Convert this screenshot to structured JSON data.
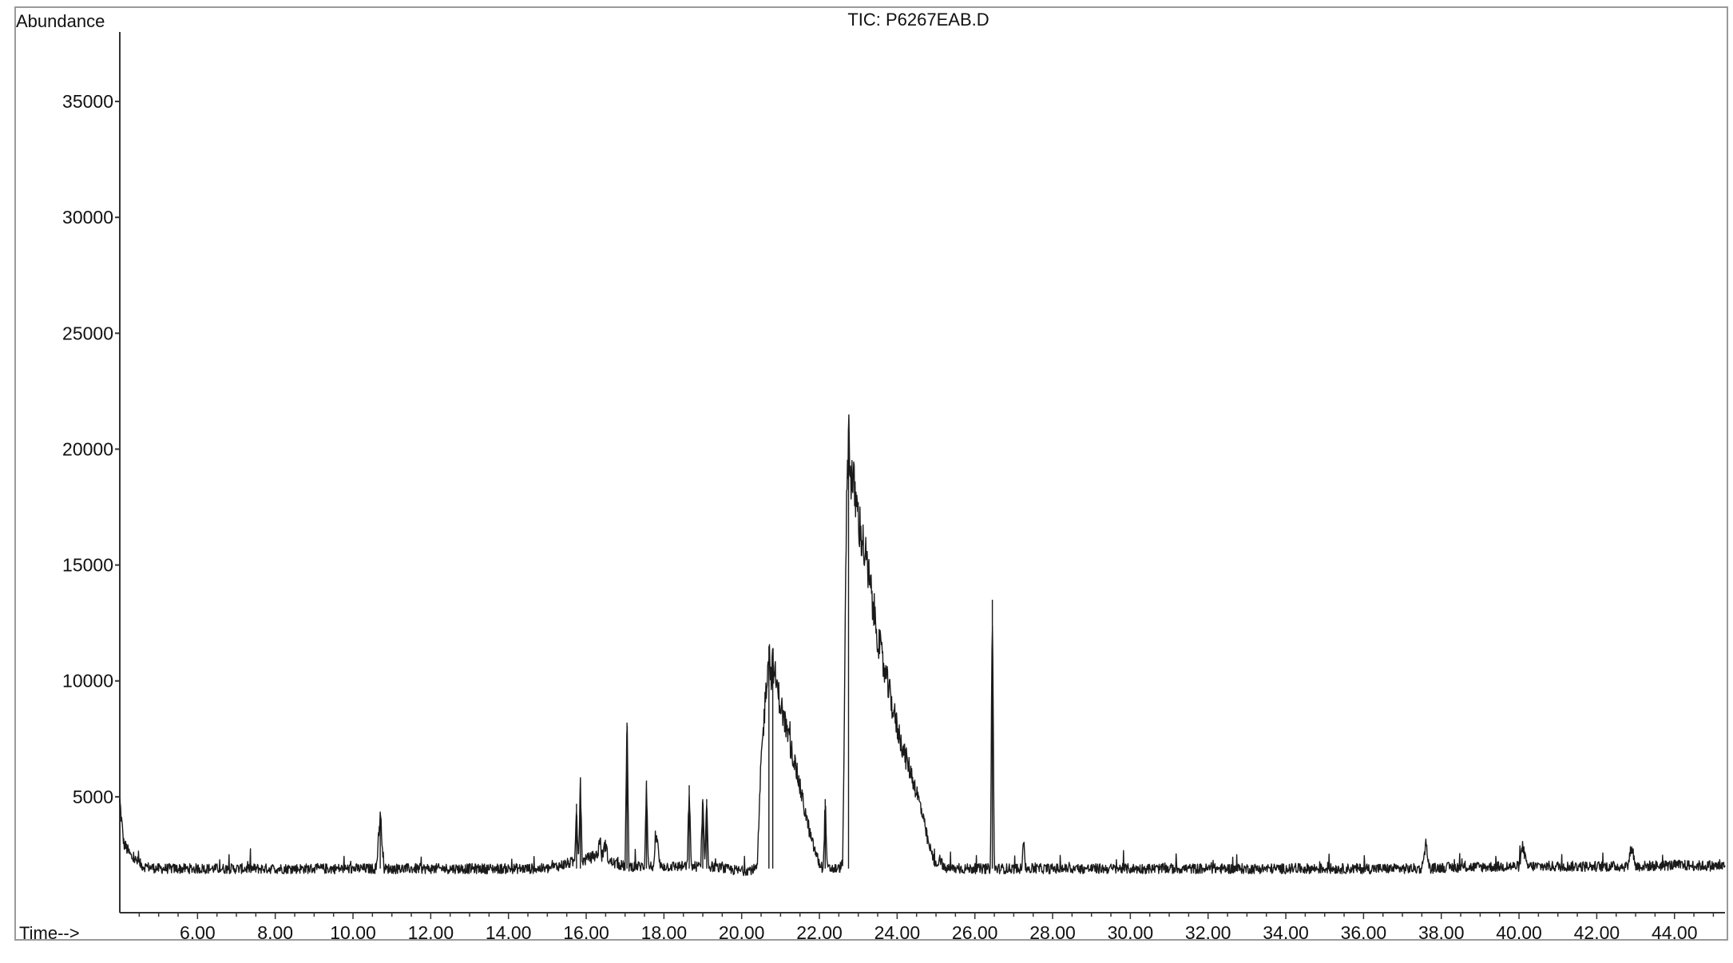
{
  "chart_data": {
    "type": "line",
    "title": "TIC: P6267EAB.D",
    "ylabel": "Abundance",
    "xlabel": "Time-->",
    "xlim": [
      4.0,
      45.3
    ],
    "ylim": [
      0,
      38000
    ],
    "x_ticks": [
      "6.00",
      "8.00",
      "10.00",
      "12.00",
      "14.00",
      "16.00",
      "18.00",
      "20.00",
      "22.00",
      "24.00",
      "26.00",
      "28.00",
      "30.00",
      "32.00",
      "34.00",
      "36.00",
      "38.00",
      "40.00",
      "42.00",
      "44.00"
    ],
    "y_ticks": [
      "5000",
      "10000",
      "15000",
      "20000",
      "25000",
      "30000",
      "35000"
    ],
    "line_color": "#1a1a1a",
    "grid": false,
    "legend": "none",
    "series": [
      {
        "baseline": 1900,
        "x": [
          4.0,
          4.1,
          4.3,
          4.6,
          5.0,
          6.0,
          8.0,
          10.0,
          10.6,
          10.7,
          10.8,
          12.0,
          14.0,
          15.0,
          15.7,
          15.75,
          15.8,
          15.85,
          15.9,
          16.0,
          16.3,
          16.35,
          16.4,
          16.5,
          16.55,
          16.6,
          17.0,
          17.05,
          17.1,
          17.5,
          17.55,
          17.6,
          17.75,
          17.8,
          17.9,
          18.5,
          18.6,
          18.65,
          18.7,
          18.95,
          19.0,
          19.05,
          19.1,
          19.15,
          19.2,
          19.5,
          20.0,
          20.4,
          20.5,
          20.6,
          20.7,
          20.75,
          20.8,
          20.9,
          21.0,
          21.2,
          21.4,
          21.6,
          21.8,
          22.0,
          22.1,
          22.15,
          22.2,
          22.3,
          22.5,
          22.6,
          22.7,
          22.75,
          22.8,
          22.9,
          23.0,
          23.2,
          23.4,
          23.6,
          23.8,
          24.0,
          24.2,
          24.4,
          24.6,
          24.8,
          25.0,
          25.1,
          25.2,
          25.4,
          26.0,
          26.4,
          26.45,
          26.5,
          26.6,
          26.8,
          27.0,
          27.2,
          27.25,
          27.3,
          27.5,
          28.0,
          30.0,
          32.0,
          34.0,
          36.0,
          37.5,
          37.6,
          37.7,
          38.0,
          40.0,
          40.1,
          40.2,
          42.0,
          42.8,
          42.9,
          43.0,
          44.0,
          45.3
        ],
        "y": [
          4800,
          3000,
          2400,
          2000,
          1900,
          1900,
          1900,
          1900,
          1900,
          4300,
          1900,
          1900,
          1900,
          1900,
          2200,
          4700,
          2200,
          5400,
          2200,
          2300,
          2500,
          3300,
          2400,
          3000,
          2400,
          2200,
          2000,
          8200,
          2000,
          2000,
          5700,
          2000,
          2000,
          3500,
          2000,
          2000,
          2000,
          5500,
          2000,
          2000,
          4900,
          2000,
          4900,
          2000,
          2000,
          1900,
          1800,
          1900,
          6500,
          9000,
          11500,
          10200,
          10800,
          9800,
          9000,
          7600,
          6200,
          4600,
          3100,
          2100,
          1900,
          4900,
          1900,
          1900,
          1900,
          2100,
          17500,
          21000,
          19000,
          18200,
          17000,
          15200,
          13000,
          11000,
          9500,
          8000,
          6800,
          5800,
          4600,
          3000,
          2000,
          2400,
          1900,
          1900,
          1900,
          1900,
          13500,
          1900,
          1900,
          1900,
          1900,
          1900,
          3400,
          1900,
          1900,
          1900,
          1900,
          1900,
          1900,
          1900,
          1900,
          3000,
          1900,
          1950,
          2000,
          2900,
          2000,
          2000,
          2000,
          2900,
          2000,
          2050,
          2000
        ]
      }
    ]
  }
}
